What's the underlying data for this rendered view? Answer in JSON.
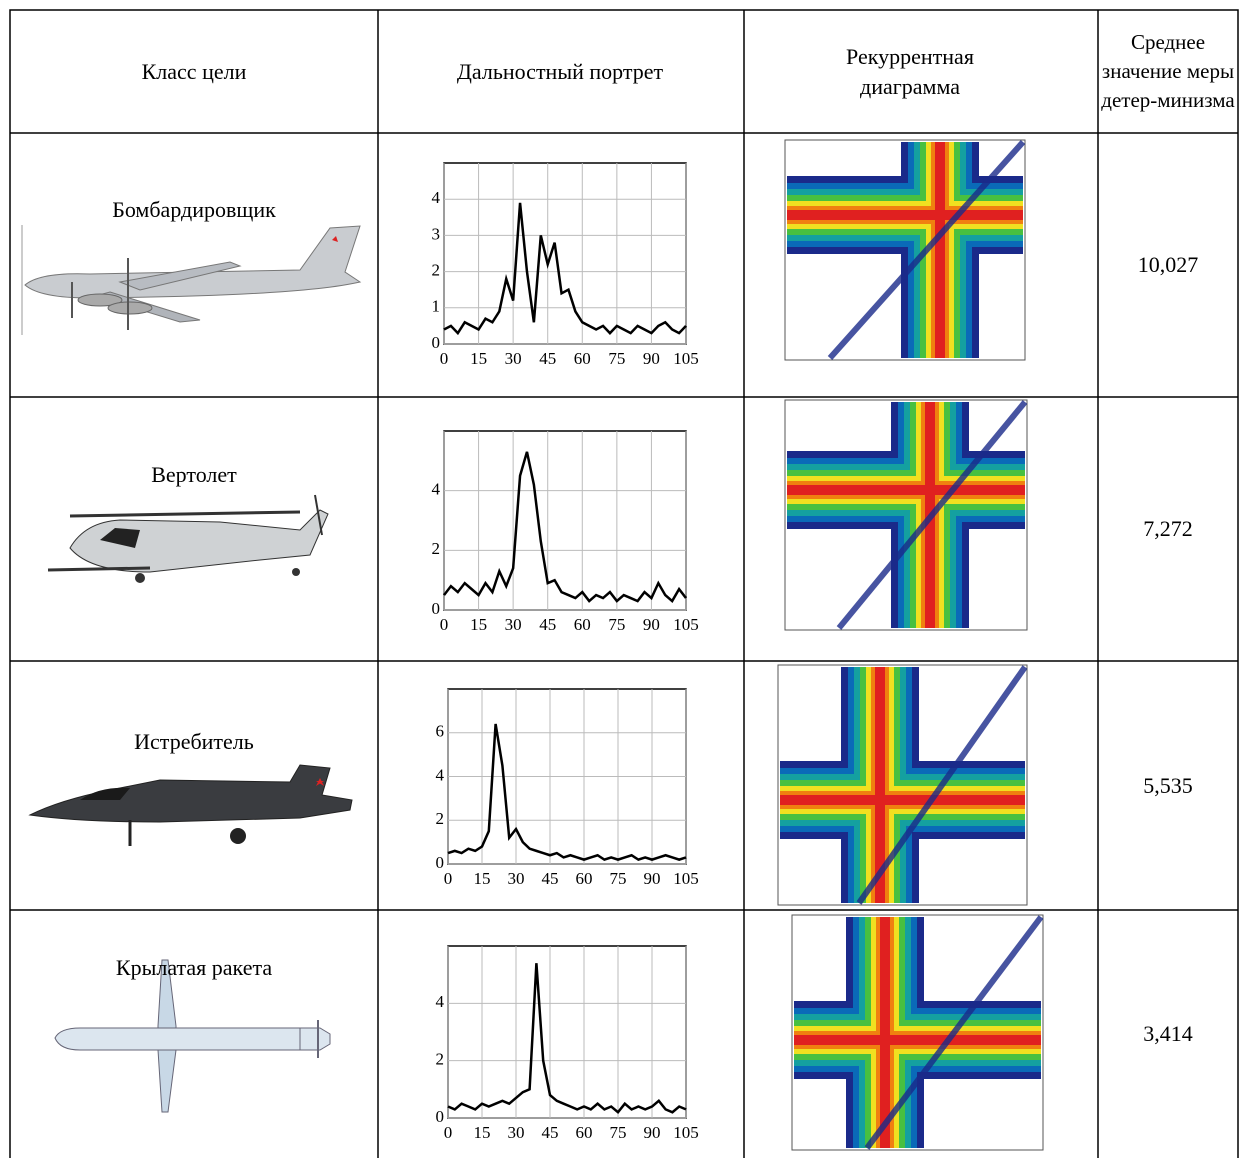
{
  "table": {
    "header": [
      "Класс цели",
      "Дальностный портрет",
      "Рекуррентная диаграмма",
      "Среднее значение меры детер-минизма"
    ],
    "rows": [
      {
        "class": "Бомбардировщик",
        "determinism": "10,027",
        "profile": {
          "type": "line",
          "color": "#000000",
          "grid": true,
          "x": [
            0,
            3,
            6,
            9,
            12,
            15,
            18,
            21,
            24,
            27,
            30,
            33,
            36,
            39,
            42,
            45,
            48,
            51,
            54,
            57,
            60,
            63,
            66,
            69,
            72,
            75,
            78,
            81,
            84,
            87,
            90,
            93,
            96,
            99,
            102,
            105
          ],
          "values": [
            0.4,
            0.5,
            0.3,
            0.6,
            0.5,
            0.4,
            0.7,
            0.6,
            0.9,
            1.8,
            1.2,
            3.9,
            2.0,
            0.6,
            3.0,
            2.2,
            2.8,
            1.4,
            1.5,
            0.9,
            0.6,
            0.5,
            0.4,
            0.5,
            0.3,
            0.5,
            0.4,
            0.3,
            0.5,
            0.4,
            0.3,
            0.5,
            0.6,
            0.4,
            0.3,
            0.5
          ],
          "xlim": [
            0,
            105
          ],
          "xticks": [
            0,
            15,
            30,
            45,
            60,
            75,
            90,
            105
          ],
          "ylim": [
            0,
            5
          ],
          "yticks": [
            0,
            1,
            2,
            3,
            4
          ]
        }
      },
      {
        "class": "Вертолет",
        "determinism": "7,272",
        "profile": {
          "type": "line",
          "color": "#000000",
          "grid": true,
          "x": [
            0,
            3,
            6,
            9,
            12,
            15,
            18,
            21,
            24,
            27,
            30,
            33,
            36,
            39,
            42,
            45,
            48,
            51,
            54,
            57,
            60,
            63,
            66,
            69,
            72,
            75,
            78,
            81,
            84,
            87,
            90,
            93,
            96,
            99,
            102,
            105
          ],
          "values": [
            0.5,
            0.8,
            0.6,
            0.9,
            0.7,
            0.5,
            0.9,
            0.6,
            1.3,
            0.8,
            1.4,
            4.5,
            5.3,
            4.2,
            2.3,
            0.9,
            1.0,
            0.6,
            0.5,
            0.4,
            0.6,
            0.3,
            0.5,
            0.4,
            0.6,
            0.3,
            0.5,
            0.4,
            0.3,
            0.6,
            0.4,
            0.9,
            0.5,
            0.3,
            0.7,
            0.4
          ],
          "xlim": [
            0,
            105
          ],
          "xticks": [
            0,
            15,
            30,
            45,
            60,
            75,
            90,
            105
          ],
          "ylim": [
            0,
            6
          ],
          "yticks": [
            0,
            2,
            4
          ]
        }
      },
      {
        "class": "Истребитель",
        "determinism": "5,535",
        "profile": {
          "type": "line",
          "color": "#000000",
          "grid": true,
          "x": [
            0,
            3,
            6,
            9,
            12,
            15,
            18,
            21,
            24,
            27,
            30,
            33,
            36,
            39,
            42,
            45,
            48,
            51,
            54,
            57,
            60,
            63,
            66,
            69,
            72,
            75,
            78,
            81,
            84,
            87,
            90,
            93,
            96,
            99,
            102,
            105
          ],
          "values": [
            0.5,
            0.6,
            0.5,
            0.7,
            0.6,
            0.8,
            1.5,
            6.4,
            4.5,
            1.2,
            1.6,
            1.0,
            0.7,
            0.6,
            0.5,
            0.4,
            0.5,
            0.3,
            0.4,
            0.3,
            0.2,
            0.3,
            0.4,
            0.2,
            0.3,
            0.2,
            0.3,
            0.4,
            0.2,
            0.3,
            0.2,
            0.3,
            0.4,
            0.3,
            0.2,
            0.3
          ],
          "xlim": [
            0,
            105
          ],
          "xticks": [
            0,
            15,
            30,
            45,
            60,
            75,
            90,
            105
          ],
          "ylim": [
            0,
            8
          ],
          "yticks": [
            0,
            2,
            4,
            6
          ]
        }
      },
      {
        "class": "Крылатая ракета",
        "determinism": "3,414",
        "profile": {
          "type": "line",
          "color": "#000000",
          "grid": true,
          "x": [
            0,
            3,
            6,
            9,
            12,
            15,
            18,
            21,
            24,
            27,
            30,
            33,
            36,
            39,
            42,
            45,
            48,
            51,
            54,
            57,
            60,
            63,
            66,
            69,
            72,
            75,
            78,
            81,
            84,
            87,
            90,
            93,
            96,
            99,
            102,
            105
          ],
          "values": [
            0.4,
            0.3,
            0.5,
            0.4,
            0.3,
            0.5,
            0.4,
            0.5,
            0.6,
            0.5,
            0.7,
            0.9,
            1.0,
            5.4,
            2.0,
            0.8,
            0.6,
            0.5,
            0.4,
            0.3,
            0.4,
            0.3,
            0.5,
            0.3,
            0.4,
            0.2,
            0.5,
            0.3,
            0.4,
            0.3,
            0.4,
            0.6,
            0.3,
            0.2,
            0.4,
            0.3
          ],
          "xlim": [
            0,
            105
          ],
          "xticks": [
            0,
            15,
            30,
            45,
            60,
            75,
            90,
            105
          ],
          "ylim": [
            0,
            6
          ],
          "yticks": [
            0,
            2,
            4
          ]
        }
      }
    ]
  }
}
